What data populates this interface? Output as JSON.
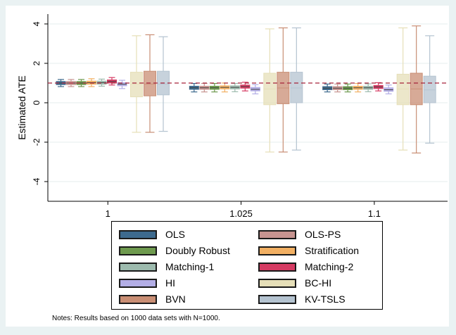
{
  "chart_data": {
    "type": "box",
    "ylabel": "Estimated ATE",
    "xlabel": "",
    "ylim": [
      -5,
      4.5
    ],
    "yticks": [
      -4,
      -2,
      0,
      2,
      4
    ],
    "grid": true,
    "reference_line": 1,
    "categories": [
      "1",
      "1.025",
      "1.1"
    ],
    "series": [
      {
        "name": "OLS",
        "color": "#3d6a8e",
        "boxes": [
          [
            0.82,
            0.92,
            1.0,
            1.08,
            1.18
          ],
          [
            0.55,
            0.68,
            0.76,
            0.84,
            0.98
          ],
          [
            0.55,
            0.66,
            0.74,
            0.82,
            0.95
          ]
        ]
      },
      {
        "name": "OLS-PS",
        "color": "#c79490",
        "boxes": [
          [
            0.82,
            0.92,
            1.0,
            1.08,
            1.18
          ],
          [
            0.55,
            0.68,
            0.76,
            0.84,
            0.98
          ],
          [
            0.55,
            0.66,
            0.74,
            0.82,
            0.95
          ]
        ]
      },
      {
        "name": "Doubly Robust",
        "color": "#6e9a4e",
        "boxes": [
          [
            0.82,
            0.92,
            1.0,
            1.08,
            1.18
          ],
          [
            0.55,
            0.68,
            0.76,
            0.84,
            0.98
          ],
          [
            0.55,
            0.66,
            0.74,
            0.82,
            0.95
          ]
        ]
      },
      {
        "name": "Stratification",
        "color": "#f2b063",
        "boxes": [
          [
            0.82,
            0.94,
            1.02,
            1.1,
            1.22
          ],
          [
            0.55,
            0.7,
            0.78,
            0.86,
            1.0
          ],
          [
            0.55,
            0.68,
            0.76,
            0.84,
            0.98
          ]
        ]
      },
      {
        "name": "Matching-1",
        "color": "#9dbbae",
        "boxes": [
          [
            0.84,
            0.94,
            1.02,
            1.1,
            1.2
          ],
          [
            0.56,
            0.7,
            0.78,
            0.86,
            0.98
          ],
          [
            0.56,
            0.68,
            0.76,
            0.84,
            0.96
          ]
        ]
      },
      {
        "name": "Matching-2",
        "color": "#d63b63",
        "boxes": [
          [
            0.9,
            1.0,
            1.08,
            1.16,
            1.28
          ],
          [
            0.6,
            0.74,
            0.82,
            0.9,
            1.04
          ],
          [
            0.6,
            0.72,
            0.8,
            0.88,
            1.02
          ]
        ]
      },
      {
        "name": "HI",
        "color": "#b3aee6",
        "boxes": [
          [
            0.72,
            0.86,
            0.94,
            1.02,
            1.14
          ],
          [
            0.45,
            0.6,
            0.68,
            0.78,
            0.92
          ],
          [
            0.45,
            0.58,
            0.66,
            0.76,
            0.9
          ]
        ]
      },
      {
        "name": "BC-HI",
        "color": "#e6dfb8",
        "boxes": [
          [
            -1.5,
            0.3,
            0.95,
            1.55,
            3.4
          ],
          [
            -2.5,
            -0.1,
            0.7,
            1.5,
            3.75
          ],
          [
            -2.4,
            -0.1,
            0.7,
            1.45,
            3.8
          ]
        ]
      },
      {
        "name": "BVN",
        "color": "#c98e74",
        "boxes": [
          [
            -1.5,
            0.35,
            0.95,
            1.6,
            3.45
          ],
          [
            -2.5,
            -0.05,
            0.75,
            1.55,
            3.8
          ],
          [
            -2.55,
            -0.1,
            0.7,
            1.5,
            3.9
          ]
        ]
      },
      {
        "name": "KV-TSLS",
        "color": "#b4c3d0",
        "boxes": [
          [
            -1.45,
            0.4,
            0.95,
            1.6,
            3.35
          ],
          [
            -2.4,
            0.0,
            0.75,
            1.55,
            3.8
          ],
          [
            -2.05,
            0.0,
            0.65,
            1.35,
            3.4
          ]
        ]
      }
    ],
    "legend": {
      "position": "bottom",
      "order": [
        "OLS",
        "OLS-PS",
        "Doubly Robust",
        "Stratification",
        "Matching-1",
        "Matching-2",
        "HI",
        "BC-HI",
        "BVN",
        "KV-TSLS"
      ]
    }
  },
  "note": "Notes: Results based on 1000 data sets with N=1000."
}
